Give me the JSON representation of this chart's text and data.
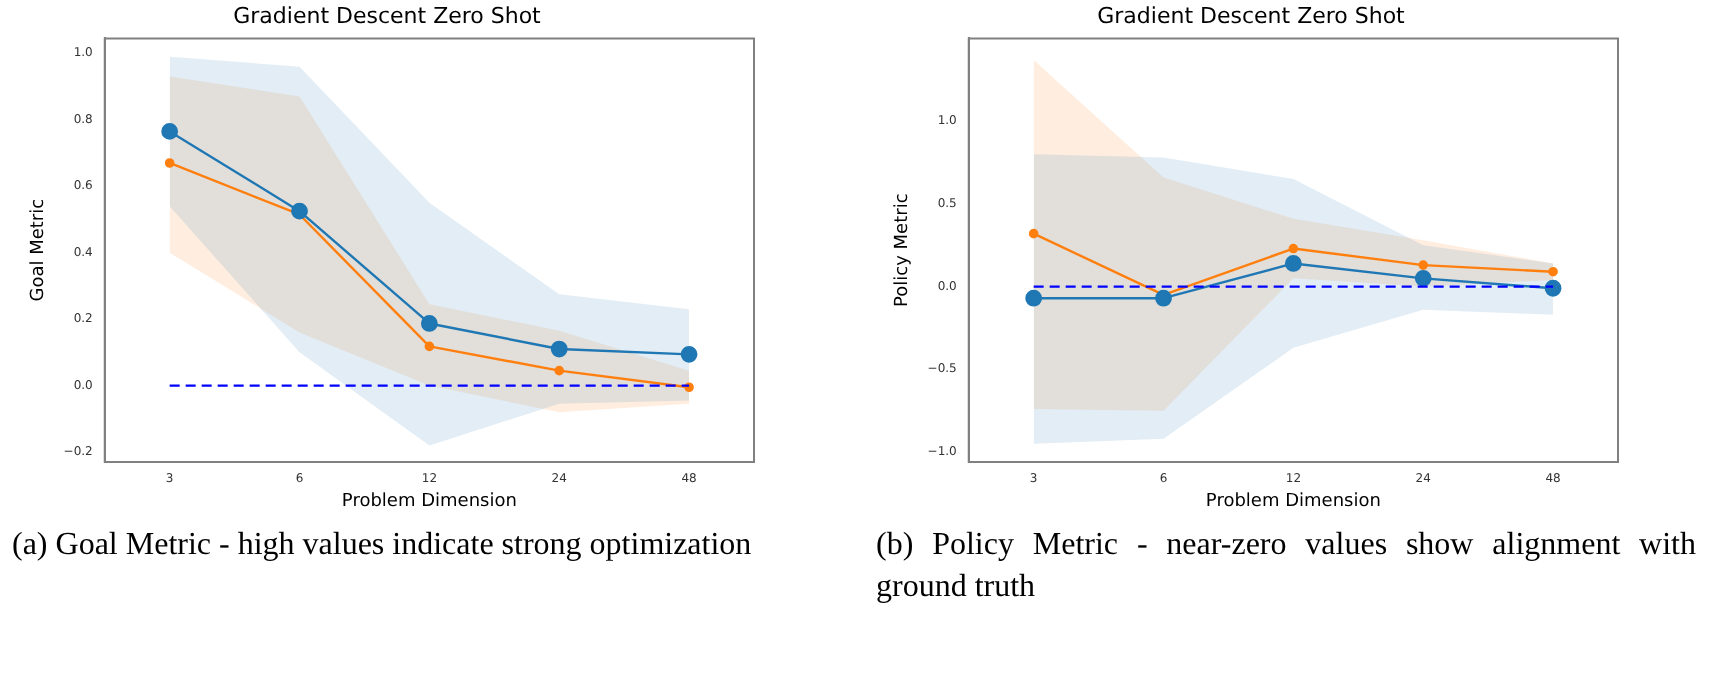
{
  "chart_data": [
    {
      "type": "line",
      "title": "Gradient Descent Zero Shot",
      "xlabel": "Problem Dimension",
      "ylabel": "Goal Metric",
      "categories": [
        "3",
        "6",
        "12",
        "24",
        "48"
      ],
      "series": [
        {
          "color": "#1f77b4",
          "values": [
            0.765,
            0.525,
            0.187,
            0.11,
            0.094
          ],
          "lower": [
            0.54,
            0.1,
            -0.18,
            -0.055,
            -0.045
          ],
          "upper": [
            0.99,
            0.96,
            0.55,
            0.275,
            0.23
          ]
        },
        {
          "color": "#ff7f0e",
          "values": [
            0.67,
            0.515,
            0.118,
            0.045,
            -0.005
          ],
          "lower": [
            0.4,
            0.16,
            0.0,
            -0.08,
            -0.055
          ],
          "upper": [
            0.93,
            0.87,
            0.245,
            0.165,
            0.045
          ]
        }
      ],
      "ylim": [
        -0.23,
        1.045
      ],
      "yticks": [
        {
          "value": -0.2,
          "label": "−0.2"
        },
        {
          "value": 0,
          "label": "0.0"
        },
        {
          "value": 0.2,
          "label": "0.2"
        },
        {
          "value": 0.4,
          "label": "0.4"
        },
        {
          "value": 0.6,
          "label": "0.6"
        },
        {
          "value": 0.8,
          "label": "0.8"
        },
        {
          "value": 1,
          "label": "1.0"
        }
      ],
      "ref_lines": [
        {
          "axis": "y",
          "value": 0,
          "color": "#0000ff",
          "line_style": "dashed"
        }
      ],
      "marker": "circle",
      "grid": false,
      "legend": false,
      "annotations": [
        "(a) Goal Metric - high values indicate strong optimization"
      ]
    },
    {
      "type": "line",
      "title": "Gradient Descent Zero Shot",
      "xlabel": "Problem Dimension",
      "ylabel": "Policy Metric",
      "categories": [
        "3",
        "6",
        "12",
        "24",
        "48"
      ],
      "series": [
        {
          "color": "#1f77b4",
          "values": [
            -0.07,
            -0.07,
            0.14,
            0.05,
            -0.01
          ],
          "lower": [
            -0.95,
            -0.92,
            -0.37,
            -0.14,
            -0.17
          ],
          "upper": [
            0.8,
            0.78,
            0.65,
            0.25,
            0.14
          ]
        },
        {
          "color": "#ff7f0e",
          "values": [
            0.32,
            -0.05,
            0.23,
            0.13,
            0.09
          ],
          "lower": [
            -0.74,
            -0.75,
            0.05,
            0.0,
            0.04
          ],
          "upper": [
            1.37,
            0.66,
            0.41,
            0.28,
            0.14
          ]
        }
      ],
      "ylim": [
        -1.06,
        1.5
      ],
      "yticks": [
        {
          "value": -1,
          "label": "−1.0"
        },
        {
          "value": -0.5,
          "label": "−0.5"
        },
        {
          "value": 0,
          "label": "0.0"
        },
        {
          "value": 0.5,
          "label": "0.5"
        },
        {
          "value": 1,
          "label": "1.0"
        }
      ],
      "ref_lines": [
        {
          "axis": "y",
          "value": 0,
          "color": "#0000ff",
          "line_style": "dashed"
        }
      ],
      "marker": "circle",
      "grid": false,
      "legend": false,
      "annotations": [
        "(b) Policy Metric - near-zero values show alignment with ground truth"
      ]
    }
  ]
}
